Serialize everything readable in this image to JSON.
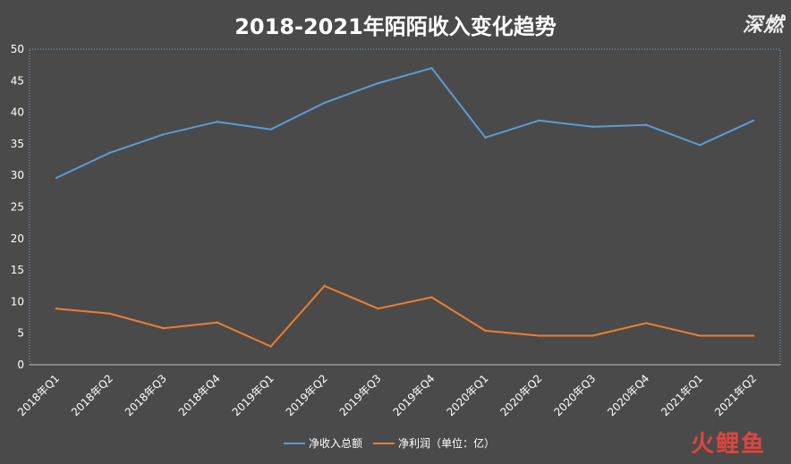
{
  "title": "2018-2021年陌陌收入变化趋势",
  "watermark": "深燃",
  "brand": "火鲤鱼",
  "chart_data": {
    "type": "line",
    "categories": [
      "2018年Q1",
      "2018年Q2",
      "2018年Q3",
      "2018年Q4",
      "2019年Q1",
      "2019年Q2",
      "2019年Q3",
      "2019年Q4",
      "2020年Q1",
      "2020年Q2",
      "2020年Q3",
      "2020年Q4",
      "2021年Q1",
      "2021年Q2"
    ],
    "series": [
      {
        "name": "净收入总额",
        "color": "#5b9bd5",
        "values": [
          29.6,
          33.6,
          36.5,
          38.5,
          37.3,
          41.5,
          44.6,
          47.0,
          36.0,
          38.7,
          37.7,
          38.0,
          34.8,
          38.7
        ]
      },
      {
        "name": "净利润（单位：亿）",
        "color": "#ed7d31",
        "values": [
          8.9,
          8.1,
          5.8,
          6.7,
          2.9,
          12.5,
          8.9,
          10.7,
          5.4,
          4.6,
          4.6,
          6.6,
          4.6,
          4.6
        ]
      }
    ],
    "ylim": [
      0,
      50
    ],
    "yticks": [
      0,
      5,
      10,
      15,
      20,
      25,
      30,
      35,
      40,
      45,
      50
    ],
    "grid": false,
    "legend": "bottom"
  }
}
